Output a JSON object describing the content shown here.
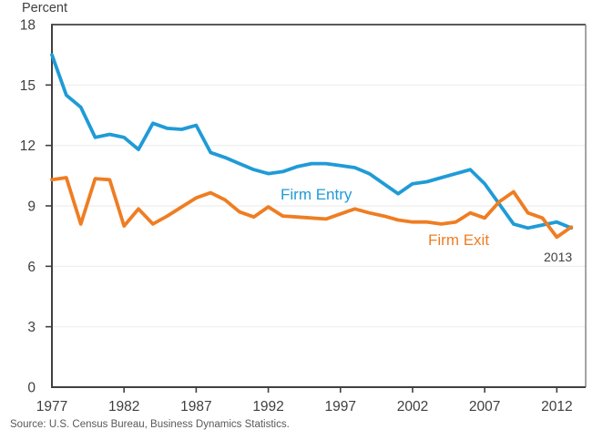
{
  "source": "Source: U.S. Census Bureau, Business Dynamics Statistics.",
  "chart_data": {
    "type": "line",
    "title": "",
    "ylabel": "Percent",
    "xlabel": "",
    "ylim": [
      0,
      18
    ],
    "xlim": [
      1977,
      2014
    ],
    "y_ticks": [
      0,
      3,
      6,
      9,
      12,
      15,
      18
    ],
    "x_ticks": [
      1977,
      1982,
      1987,
      1992,
      1997,
      2002,
      2007,
      2012
    ],
    "grid": "horizontal-faint",
    "legend_position": "inline-annotations",
    "end_year_label": "2013",
    "x": [
      1977,
      1978,
      1979,
      1980,
      1981,
      1982,
      1983,
      1984,
      1985,
      1986,
      1987,
      1988,
      1989,
      1990,
      1991,
      1992,
      1993,
      1994,
      1995,
      1996,
      1997,
      1998,
      1999,
      2000,
      2001,
      2002,
      2003,
      2004,
      2005,
      2006,
      2007,
      2008,
      2009,
      2010,
      2011,
      2012,
      2013
    ],
    "series": [
      {
        "name": "Firm Entry",
        "color": "#1f9bd7",
        "values": [
          16.5,
          14.5,
          13.9,
          12.4,
          12.55,
          12.4,
          11.8,
          13.1,
          12.85,
          12.8,
          13.0,
          11.65,
          11.4,
          11.1,
          10.8,
          10.6,
          10.7,
          10.95,
          11.1,
          11.1,
          11.0,
          10.9,
          10.6,
          10.1,
          9.6,
          10.1,
          10.2,
          10.4,
          10.6,
          10.8,
          10.1,
          9.1,
          8.1,
          7.9,
          8.05,
          8.2,
          7.9
        ]
      },
      {
        "name": "Firm Exit",
        "color": "#ef7d22",
        "values": [
          10.3,
          10.4,
          8.1,
          10.35,
          10.3,
          8.0,
          8.85,
          8.1,
          8.5,
          8.95,
          9.4,
          9.65,
          9.3,
          8.7,
          8.45,
          8.95,
          8.5,
          8.45,
          8.4,
          8.35,
          8.6,
          8.85,
          8.65,
          8.5,
          8.3,
          8.2,
          8.2,
          8.1,
          8.2,
          8.65,
          8.4,
          9.2,
          9.7,
          8.65,
          8.4,
          7.45,
          7.95
        ]
      }
    ],
    "colors": {
      "axis": "#404040",
      "frame_top": "#595959",
      "frame_right": "#7d7d7d",
      "gridline": "#f0f0f0",
      "tick_text": "#3f3f3f",
      "source_text": "#595959"
    }
  }
}
